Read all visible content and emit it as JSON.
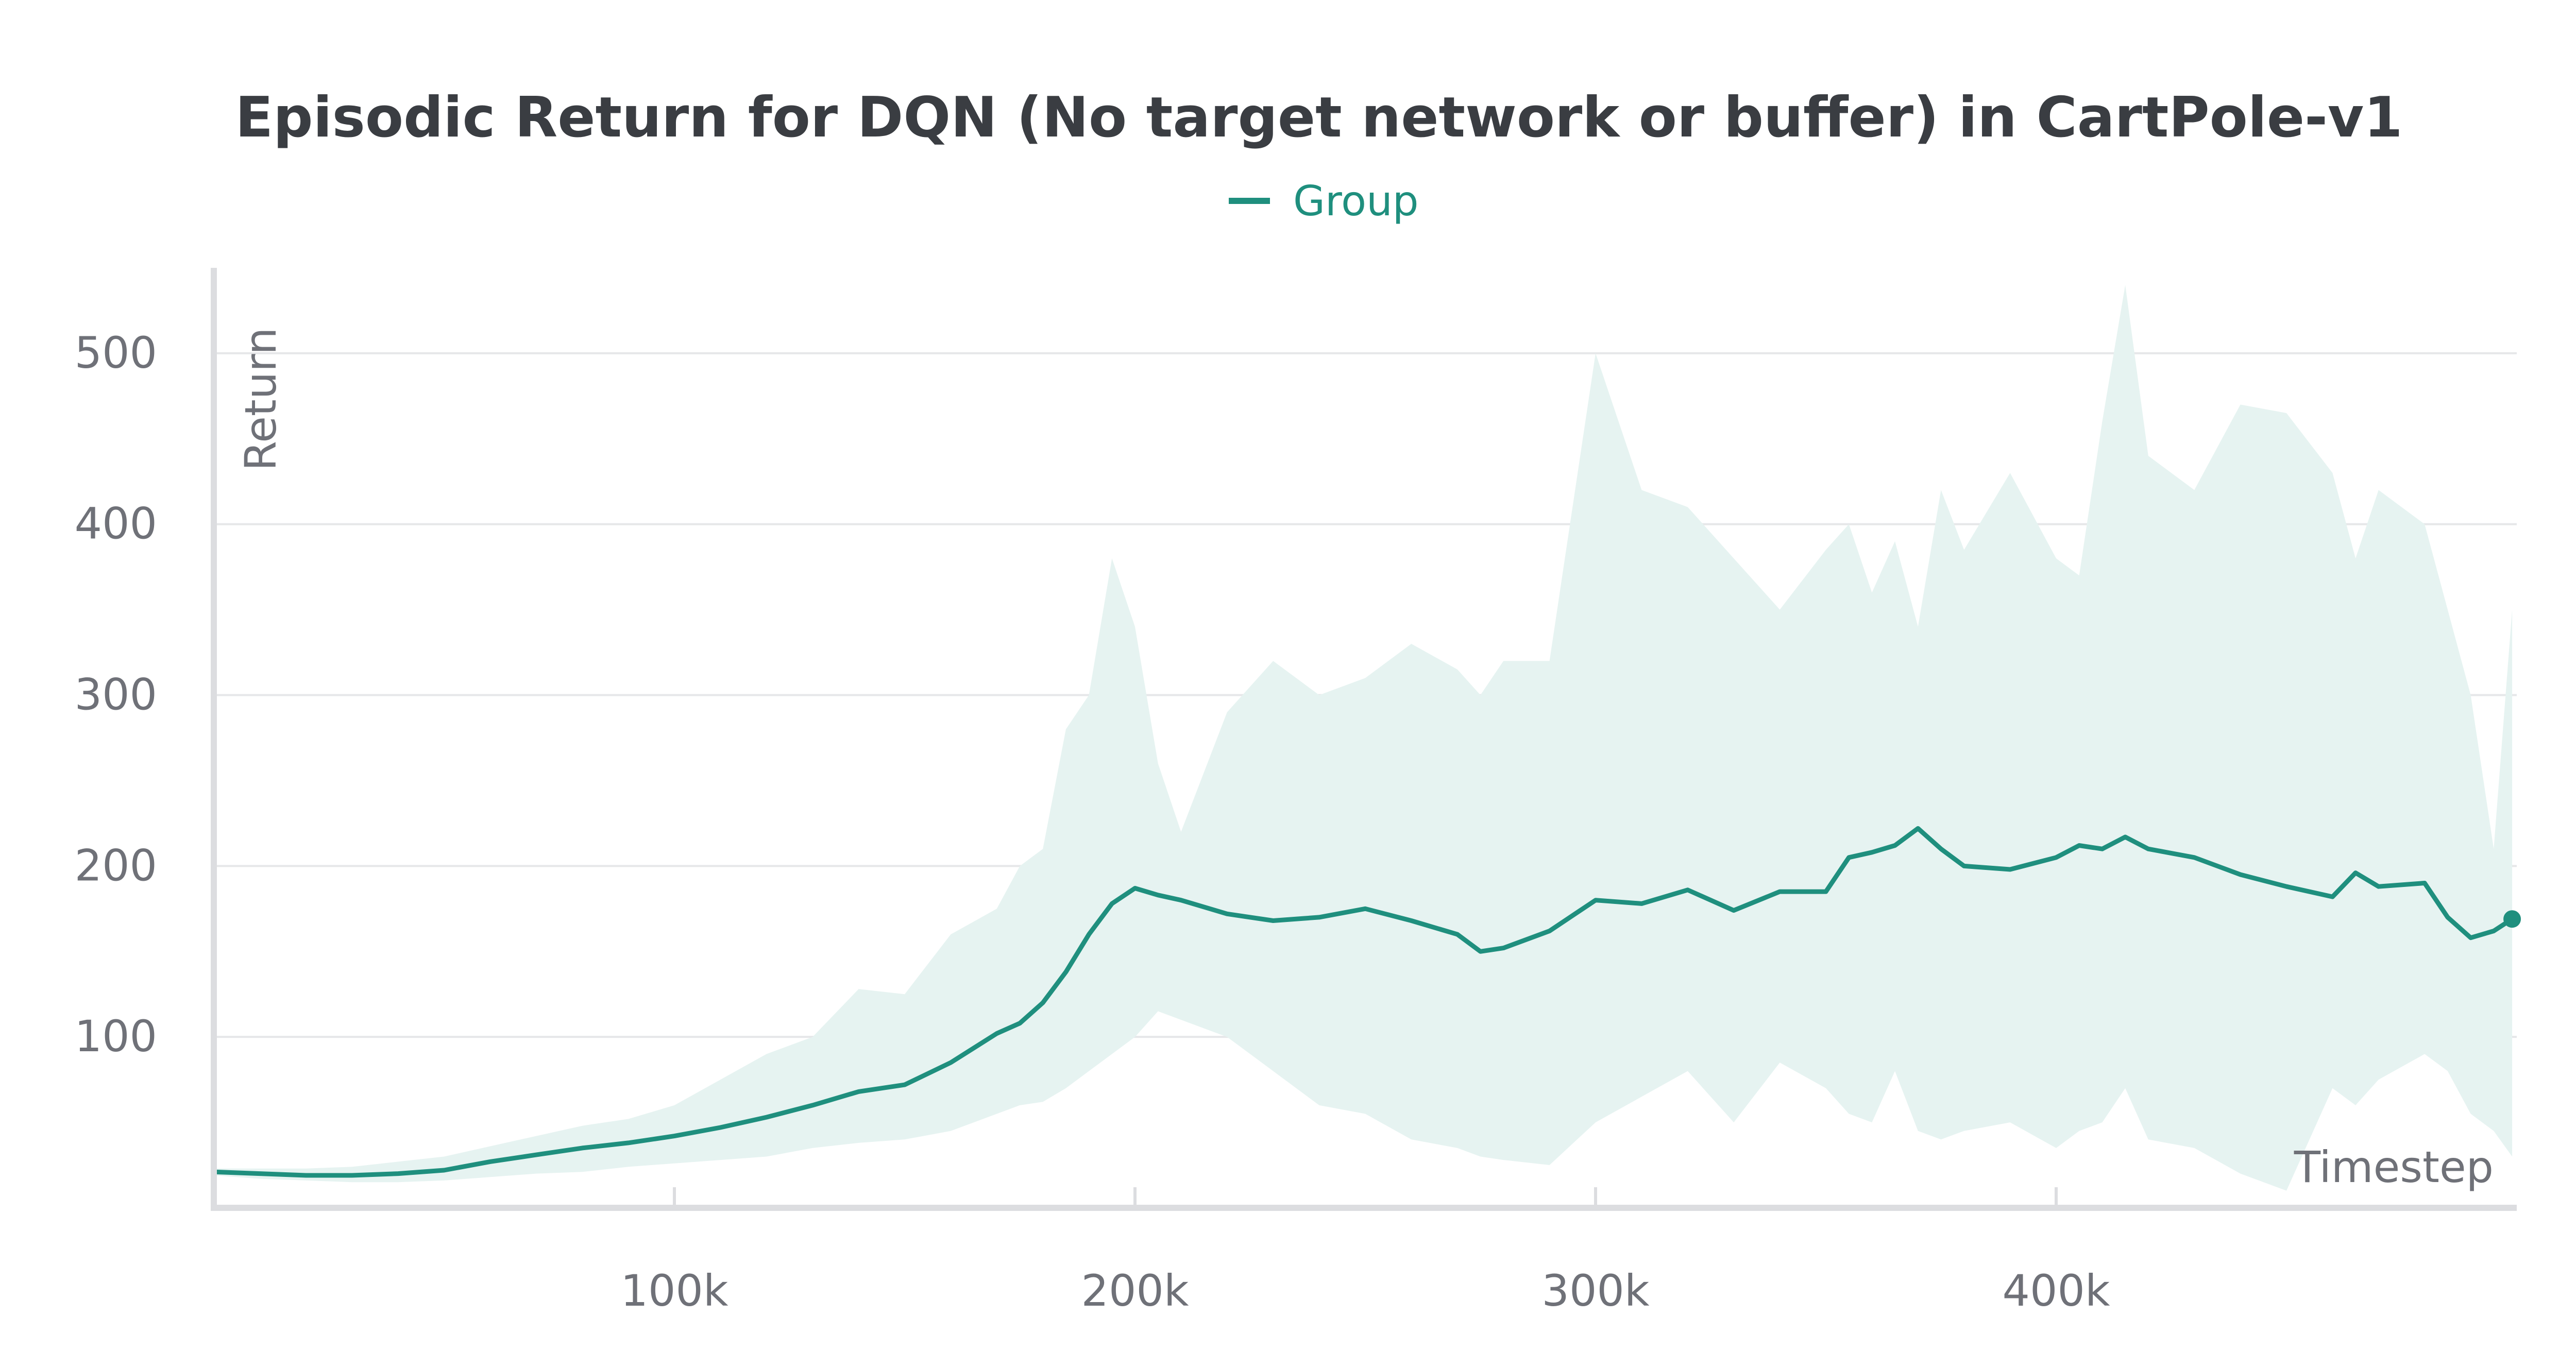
{
  "chart_data": {
    "type": "line",
    "title": "Episodic Return for DQN (No target network or buffer) in CartPole-v1",
    "xlabel": "Timestep",
    "ylabel": "Return",
    "xlim": [
      0,
      500000
    ],
    "ylim": [
      0,
      550
    ],
    "xticks": [
      100000,
      200000,
      300000,
      400000
    ],
    "xtick_labels": [
      "100k",
      "200k",
      "300k",
      "400k"
    ],
    "yticks": [
      100,
      200,
      300,
      400,
      500
    ],
    "ytick_labels": [
      "100",
      "200",
      "300",
      "400",
      "500"
    ],
    "grid": true,
    "legend_position": "top-center",
    "legend": [
      "Group"
    ],
    "colors": {
      "line": "#1f8f7e",
      "band": "#e6f3f1",
      "title": "#3a3d42",
      "legend_text": "#1f8f7e"
    },
    "series": [
      {
        "name": "Group",
        "x": [
          0,
          10000,
          20000,
          30000,
          40000,
          50000,
          60000,
          70000,
          80000,
          90000,
          100000,
          110000,
          120000,
          130000,
          140000,
          150000,
          160000,
          170000,
          175000,
          180000,
          185000,
          190000,
          195000,
          200000,
          205000,
          210000,
          220000,
          230000,
          240000,
          250000,
          260000,
          270000,
          275000,
          280000,
          290000,
          300000,
          310000,
          320000,
          330000,
          340000,
          350000,
          355000,
          360000,
          365000,
          370000,
          375000,
          380000,
          390000,
          400000,
          405000,
          410000,
          415000,
          420000,
          430000,
          440000,
          450000,
          460000,
          465000,
          470000,
          480000,
          485000,
          490000,
          495000,
          499000
        ],
        "values": [
          21,
          20,
          19,
          19,
          20,
          22,
          27,
          31,
          35,
          38,
          42,
          47,
          53,
          60,
          68,
          72,
          85,
          102,
          108,
          120,
          138,
          160,
          178,
          187,
          183,
          180,
          172,
          168,
          170,
          175,
          168,
          160,
          150,
          152,
          162,
          180,
          178,
          186,
          174,
          185,
          185,
          205,
          208,
          212,
          222,
          210,
          200,
          198,
          205,
          212,
          210,
          217,
          210,
          205,
          195,
          188,
          182,
          196,
          188,
          190,
          170,
          158,
          162,
          169
        ],
        "min": [
          19,
          17,
          16,
          15,
          15,
          16,
          18,
          20,
          21,
          24,
          26,
          28,
          30,
          35,
          38,
          40,
          45,
          55,
          60,
          62,
          70,
          80,
          90,
          100,
          115,
          110,
          100,
          80,
          60,
          55,
          40,
          35,
          30,
          28,
          25,
          50,
          65,
          80,
          50,
          85,
          70,
          55,
          50,
          80,
          45,
          40,
          45,
          50,
          35,
          45,
          50,
          70,
          40,
          35,
          20,
          10,
          70,
          60,
          75,
          90,
          80,
          55,
          45,
          30
        ],
        "max": [
          23,
          23,
          23,
          24,
          27,
          30,
          36,
          42,
          48,
          52,
          60,
          75,
          90,
          100,
          128,
          125,
          160,
          175,
          200,
          210,
          280,
          300,
          380,
          340,
          260,
          220,
          290,
          320,
          300,
          310,
          330,
          315,
          300,
          320,
          320,
          500,
          420,
          410,
          380,
          350,
          385,
          400,
          360,
          390,
          340,
          420,
          385,
          430,
          380,
          370,
          460,
          540,
          440,
          420,
          470,
          465,
          430,
          380,
          420,
          400,
          350,
          300,
          210,
          350
        ]
      }
    ]
  }
}
